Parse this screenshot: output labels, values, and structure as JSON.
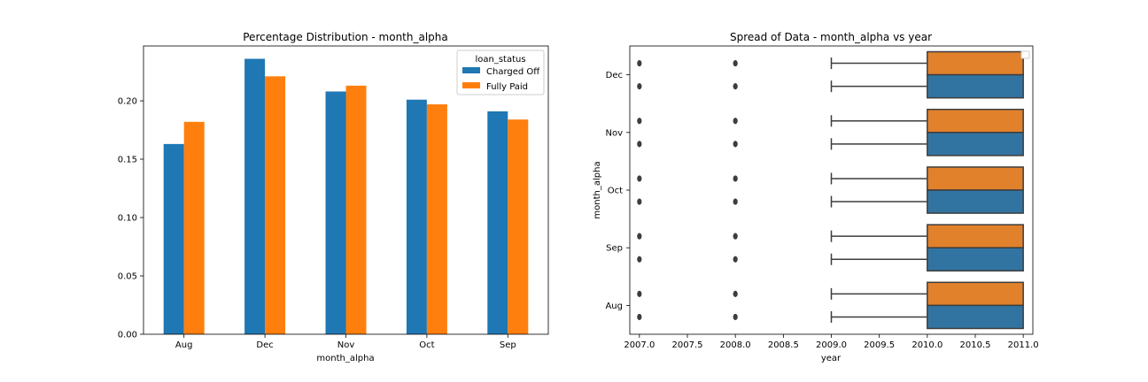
{
  "chart_data": [
    {
      "type": "bar",
      "title": "Percentage Distribution - month_alpha",
      "xlabel": "month_alpha",
      "ylabel": "",
      "categories": [
        "Aug",
        "Dec",
        "Nov",
        "Oct",
        "Sep"
      ],
      "ylim": [
        0,
        0.247
      ],
      "yticks": [
        "0.00",
        "0.05",
        "0.10",
        "0.15",
        "0.20"
      ],
      "legend": {
        "title": "loan_status",
        "position": "top-right"
      },
      "series": [
        {
          "name": "Charged Off",
          "color": "#1f77b4",
          "values": [
            0.163,
            0.236,
            0.208,
            0.201,
            0.191
          ]
        },
        {
          "name": "Fully Paid",
          "color": "#ff7f0e",
          "values": [
            0.182,
            0.221,
            0.213,
            0.197,
            0.184
          ]
        }
      ]
    },
    {
      "type": "box",
      "title": "Spread of Data - month_alpha vs year",
      "xlabel": "year",
      "ylabel": "month_alpha",
      "xlim": [
        2006.9,
        2011.1
      ],
      "xticks": [
        "2007.0",
        "2007.5",
        "2008.0",
        "2008.5",
        "2009.0",
        "2009.5",
        "2010.0",
        "2010.5",
        "2011.0"
      ],
      "categories": [
        "Dec",
        "Nov",
        "Oct",
        "Sep",
        "Aug"
      ],
      "legend": {
        "position": "top-right",
        "entries": []
      },
      "groups": [
        {
          "name": "Fully Paid",
          "color": "#e1812c"
        },
        {
          "name": "Charged Off",
          "color": "#3274a1"
        }
      ],
      "box": {
        "whisker_low": 2009.0,
        "q1": 2010.0,
        "median": 2011.0,
        "q3": 2011.0,
        "whisker_high": 2011.0,
        "outliers": [
          2007.0,
          2008.0
        ]
      }
    }
  ]
}
